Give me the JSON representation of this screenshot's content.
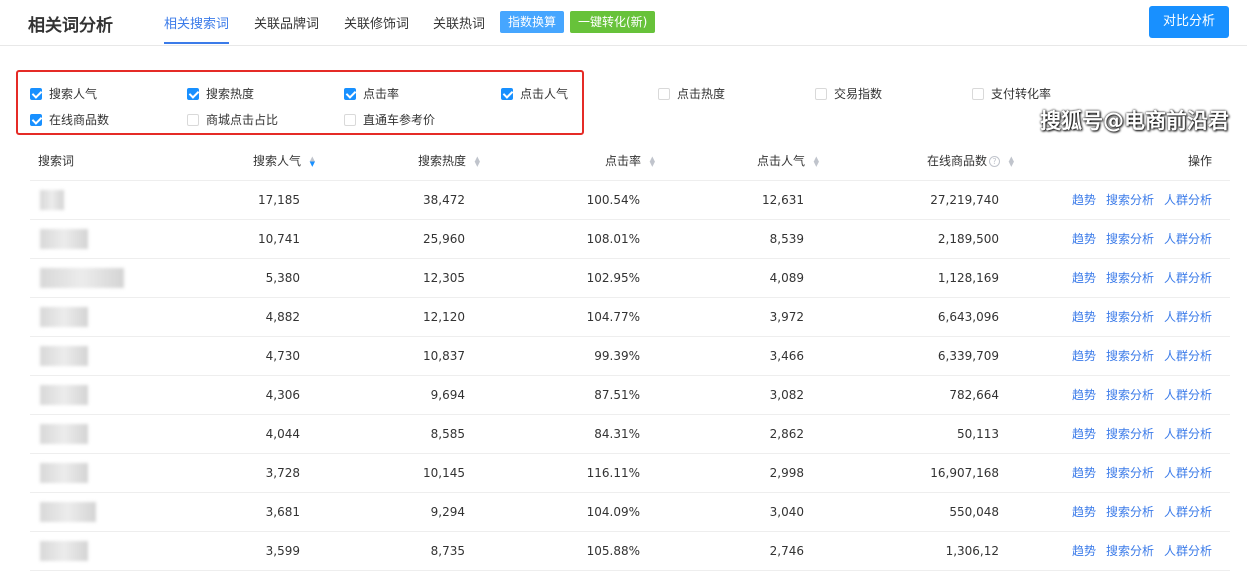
{
  "header": {
    "title": "相关词分析",
    "tabs": [
      "相关搜索词",
      "关联品牌词",
      "关联修饰词",
      "关联热词"
    ],
    "btn_index": "指数换算",
    "btn_convert": "一键转化(新)",
    "compare": "对比分析"
  },
  "filters": [
    {
      "label": "搜索人气",
      "checked": true
    },
    {
      "label": "搜索热度",
      "checked": true
    },
    {
      "label": "点击率",
      "checked": true
    },
    {
      "label": "点击人气",
      "checked": true
    },
    {
      "label": "在线商品数",
      "checked": true
    },
    {
      "label": "商城点击占比",
      "checked": false
    },
    {
      "label": "直通车参考价",
      "checked": false
    },
    {
      "label": "点击热度",
      "checked": false
    },
    {
      "label": "交易指数",
      "checked": false
    },
    {
      "label": "支付转化率",
      "checked": false
    }
  ],
  "columns": [
    "搜索词",
    "搜索人气",
    "搜索热度",
    "点击率",
    "点击人气",
    "在线商品数",
    "操作"
  ],
  "actions": [
    "趋势",
    "搜索分析",
    "人群分析"
  ],
  "rows": [
    [
      "17,185",
      "38,472",
      "100.54%",
      "12,631",
      "27,219,740"
    ],
    [
      "10,741",
      "25,960",
      "108.01%",
      "8,539",
      "2,189,500"
    ],
    [
      "5,380",
      "12,305",
      "102.95%",
      "4,089",
      "1,128,169"
    ],
    [
      "4,882",
      "12,120",
      "104.77%",
      "3,972",
      "6,643,096"
    ],
    [
      "4,730",
      "10,837",
      "99.39%",
      "3,466",
      "6,339,709"
    ],
    [
      "4,306",
      "9,694",
      "87.51%",
      "3,082",
      "782,664"
    ],
    [
      "4,044",
      "8,585",
      "84.31%",
      "2,862",
      "50,113"
    ],
    [
      "3,728",
      "10,145",
      "116.11%",
      "2,998",
      "16,907,168"
    ],
    [
      "3,681",
      "9,294",
      "104.09%",
      "3,040",
      "550,048"
    ],
    [
      "3,599",
      "8,735",
      "105.88%",
      "2,746",
      "1,306,12"
    ]
  ],
  "watermark": "搜狐号@电商前沿君",
  "colors": {
    "accent": "#1890ff",
    "green": "#67c23a",
    "highlight_border": "#e52b26"
  }
}
